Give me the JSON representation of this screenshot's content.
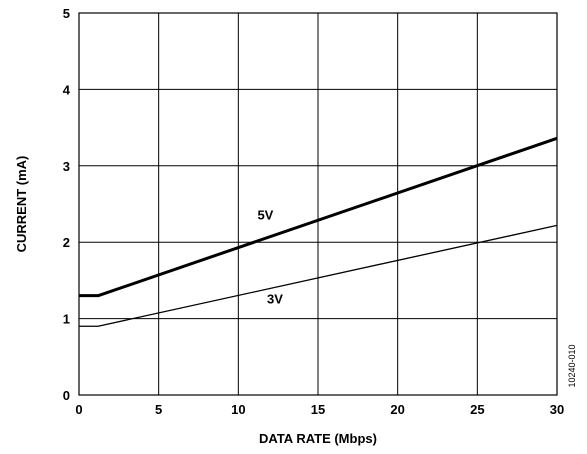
{
  "chart_data": {
    "type": "line",
    "xlabel": "DATA RATE (Mbps)",
    "ylabel": "CURRENT (mA)",
    "xlim": [
      0,
      30
    ],
    "ylim": [
      0,
      5
    ],
    "x_ticks": [
      "0",
      "5",
      "10",
      "15",
      "20",
      "25",
      "30"
    ],
    "y_ticks": [
      "0",
      "1",
      "2",
      "3",
      "4",
      "5"
    ],
    "grid": true,
    "series": [
      {
        "name": "5V",
        "color": "#000000",
        "line": "thick",
        "x": [
          0,
          1.2,
          30
        ],
        "y": [
          1.3,
          1.3,
          3.36
        ]
      },
      {
        "name": "3V",
        "color": "#000000",
        "line": "thin",
        "x": [
          0,
          1.2,
          30
        ],
        "y": [
          0.9,
          0.9,
          2.22
        ]
      }
    ],
    "figure_id": "10240-010"
  }
}
